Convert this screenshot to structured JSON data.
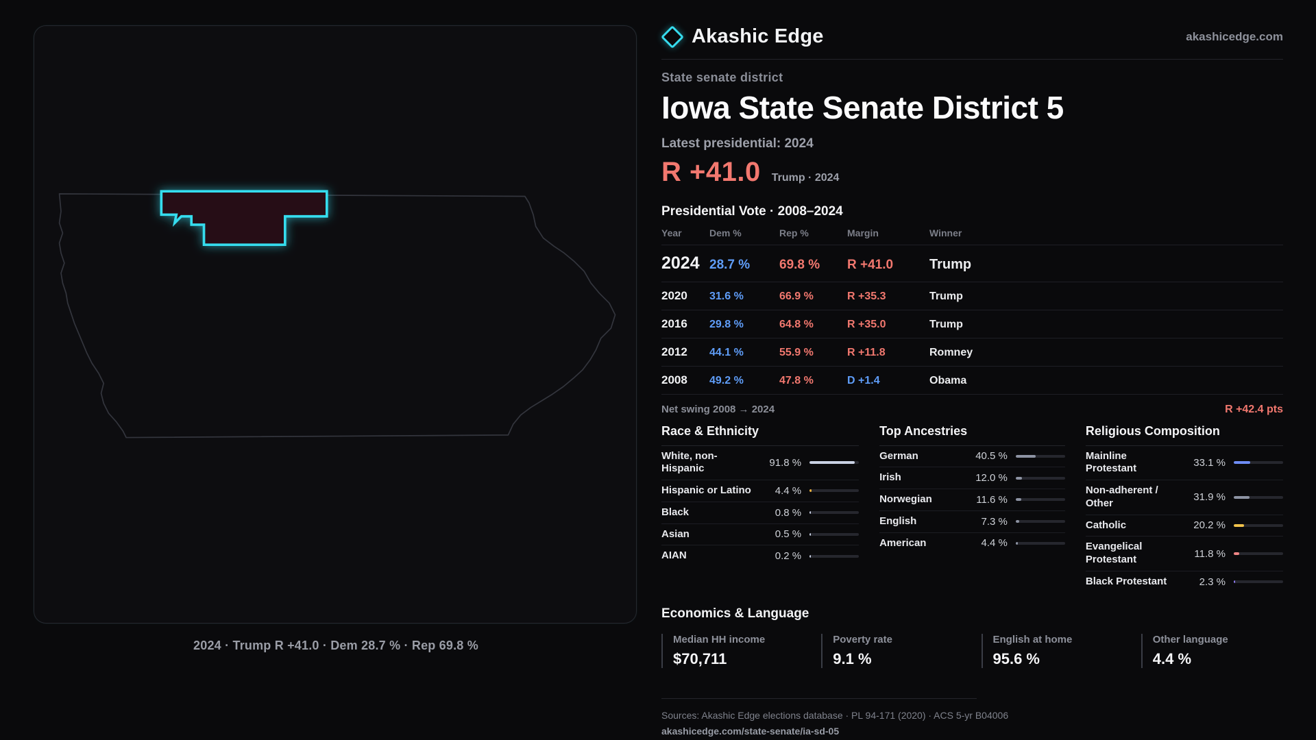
{
  "brand": {
    "name": "Akashic Edge",
    "domain": "akashicedge.com"
  },
  "colors": {
    "accent": "#36dcee",
    "dem": "#5f9df8",
    "rep": "#f2786f"
  },
  "map": {
    "caption": "2024 · Trump R +41.0 · Dem 28.7 % · Rep 69.8 %"
  },
  "header": {
    "eyebrow": "State senate district",
    "title": "Iowa State Senate District 5",
    "latest_label": "Latest presidential: 2024",
    "margin_value": "R +41.0",
    "margin_note": "Trump · 2024"
  },
  "table": {
    "title": "Presidential Vote · 2008–2024",
    "columns": [
      "Year",
      "Dem %",
      "Rep %",
      "Margin",
      "Winner"
    ],
    "rows": [
      {
        "year": "2024",
        "dem": "28.7 %",
        "rep": "69.8 %",
        "margin": "R +41.0",
        "margin_party": "R",
        "winner": "Trump",
        "emphasis": true
      },
      {
        "year": "2020",
        "dem": "31.6 %",
        "rep": "66.9 %",
        "margin": "R +35.3",
        "margin_party": "R",
        "winner": "Trump",
        "emphasis": false
      },
      {
        "year": "2016",
        "dem": "29.8 %",
        "rep": "64.8 %",
        "margin": "R +35.0",
        "margin_party": "R",
        "winner": "Trump",
        "emphasis": false
      },
      {
        "year": "2012",
        "dem": "44.1 %",
        "rep": "55.9 %",
        "margin": "R +11.8",
        "margin_party": "R",
        "winner": "Romney",
        "emphasis": false
      },
      {
        "year": "2008",
        "dem": "49.2 %",
        "rep": "47.8 %",
        "margin": "D +1.4",
        "margin_party": "D",
        "winner": "Obama",
        "emphasis": false
      }
    ]
  },
  "net_swing": {
    "label": "Net swing 2008 → 2024",
    "value": "R +42.4 pts"
  },
  "demographics": [
    {
      "title": "Race & Ethnicity",
      "rows": [
        {
          "label": "White, non-Hispanic",
          "value": "91.8 %",
          "pct": 91.8,
          "color": "#c9d1e3"
        },
        {
          "label": "Hispanic or Latino",
          "value": "4.4 %",
          "pct": 4.4,
          "color": "#f2b33d"
        },
        {
          "label": "Black",
          "value": "0.8 %",
          "pct": 0.8,
          "color": "#c9d1e3"
        },
        {
          "label": "Asian",
          "value": "0.5 %",
          "pct": 0.5,
          "color": "#c9d1e3"
        },
        {
          "label": "AIAN",
          "value": "0.2 %",
          "pct": 0.2,
          "color": "#c9d1e3"
        }
      ]
    },
    {
      "title": "Top Ancestries",
      "rows": [
        {
          "label": "German",
          "value": "40.5 %",
          "pct": 40.5,
          "color": "#8d93a3"
        },
        {
          "label": "Irish",
          "value": "12.0 %",
          "pct": 12.0,
          "color": "#8d93a3"
        },
        {
          "label": "Norwegian",
          "value": "11.6 %",
          "pct": 11.6,
          "color": "#8d93a3"
        },
        {
          "label": "English",
          "value": "7.3 %",
          "pct": 7.3,
          "color": "#8d93a3"
        },
        {
          "label": "American",
          "value": "4.4 %",
          "pct": 4.4,
          "color": "#8d93a3"
        }
      ]
    },
    {
      "title": "Religious Composition",
      "rows": [
        {
          "label": "Mainline Protestant",
          "value": "33.1 %",
          "pct": 33.1,
          "color": "#6e8cf5"
        },
        {
          "label": "Non-adherent / Other",
          "value": "31.9 %",
          "pct": 31.9,
          "color": "#8d93a3"
        },
        {
          "label": "Catholic",
          "value": "20.2 %",
          "pct": 20.2,
          "color": "#f0c24b"
        },
        {
          "label": "Evangelical Protestant",
          "value": "11.8 %",
          "pct": 11.8,
          "color": "#ef8585"
        },
        {
          "label": "Black Protestant",
          "value": "2.3 %",
          "pct": 2.3,
          "color": "#8f7df0"
        }
      ]
    }
  ],
  "economics": {
    "title": "Economics & Language",
    "stats": [
      {
        "label": "Median HH income",
        "value": "$70,711"
      },
      {
        "label": "Poverty rate",
        "value": "9.1 %"
      },
      {
        "label": "English at home",
        "value": "95.6 %"
      },
      {
        "label": "Other language",
        "value": "4.4 %"
      }
    ]
  },
  "footer": {
    "sources": "Sources: Akashic Edge elections database · PL 94-171 (2020) · ACS 5-yr B04006",
    "permalink": "akashicedge.com/state-senate/ia-sd-05"
  },
  "chart_data": [
    {
      "type": "table",
      "title": "Presidential Vote · 2008–2024",
      "columns": [
        "Year",
        "Dem %",
        "Rep %",
        "Margin",
        "Winner"
      ],
      "rows": [
        [
          2024,
          28.7,
          69.8,
          "R +41.0",
          "Trump"
        ],
        [
          2020,
          31.6,
          66.9,
          "R +35.3",
          "Trump"
        ],
        [
          2016,
          29.8,
          64.8,
          "R +35.0",
          "Trump"
        ],
        [
          2012,
          44.1,
          55.9,
          "R +11.8",
          "Romney"
        ],
        [
          2008,
          49.2,
          47.8,
          "D +1.4",
          "Obama"
        ]
      ],
      "annotations": [
        "Net swing 2008 → 2024: R +42.4 pts",
        "Latest presidential: 2024 R +41.0 Trump"
      ]
    },
    {
      "type": "bar",
      "title": "Race & Ethnicity",
      "categories": [
        "White, non-Hispanic",
        "Hispanic or Latino",
        "Black",
        "Asian",
        "AIAN"
      ],
      "values": [
        91.8,
        4.4,
        0.8,
        0.5,
        0.2
      ],
      "xlabel": "",
      "ylabel": "%",
      "ylim": [
        0,
        100
      ]
    },
    {
      "type": "bar",
      "title": "Top Ancestries",
      "categories": [
        "German",
        "Irish",
        "Norwegian",
        "English",
        "American"
      ],
      "values": [
        40.5,
        12.0,
        11.6,
        7.3,
        4.4
      ],
      "xlabel": "",
      "ylabel": "%",
      "ylim": [
        0,
        100
      ]
    },
    {
      "type": "bar",
      "title": "Religious Composition",
      "categories": [
        "Mainline Protestant",
        "Non-adherent / Other",
        "Catholic",
        "Evangelical Protestant",
        "Black Protestant"
      ],
      "values": [
        33.1,
        31.9,
        20.2,
        11.8,
        2.3
      ],
      "xlabel": "",
      "ylabel": "%",
      "ylim": [
        0,
        100
      ]
    },
    {
      "type": "table",
      "title": "Economics & Language",
      "columns": [
        "Median HH income",
        "Poverty rate",
        "English at home",
        "Other language"
      ],
      "rows": [
        [
          "$70,711",
          "9.1 %",
          "95.6 %",
          "4.4 %"
        ]
      ]
    }
  ]
}
